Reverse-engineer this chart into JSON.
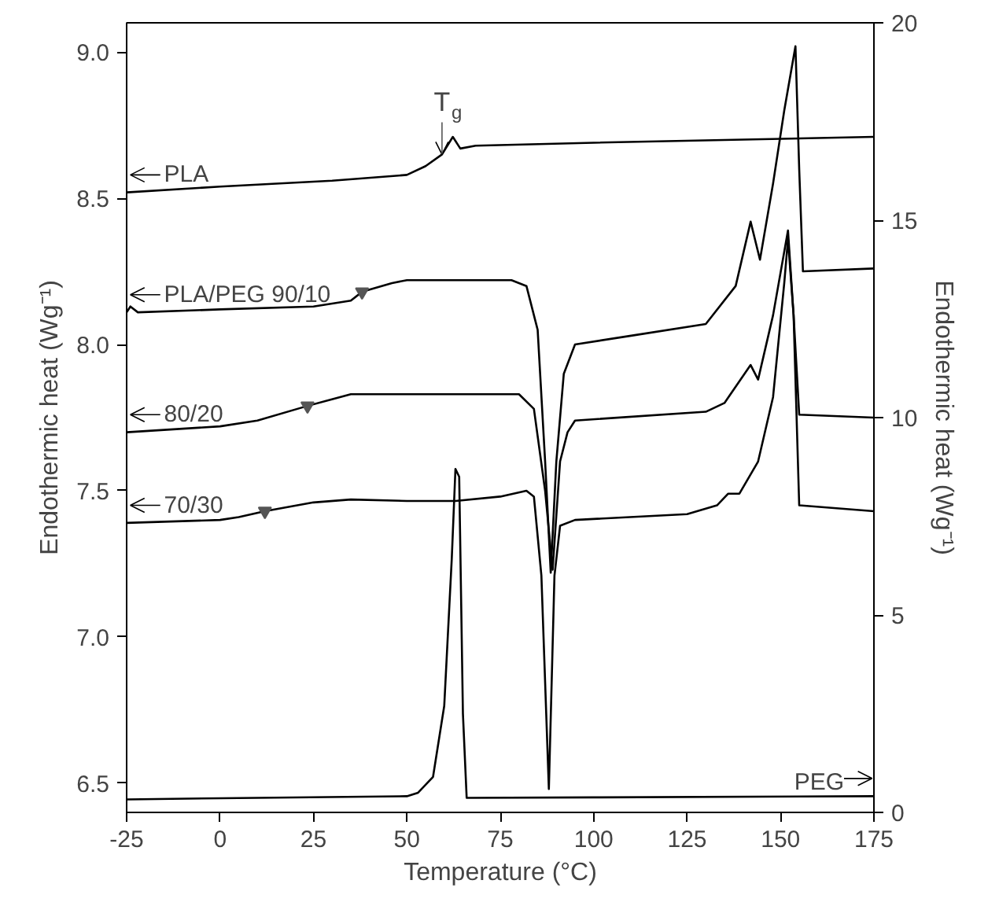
{
  "chart_data": {
    "type": "line",
    "xlabel": "Temperature (°C)",
    "ylabel": "Endothermic heat (Wg⁻¹)",
    "y2label": "Endothermic heat (Wg⁻¹)",
    "xlim": [
      -25,
      175
    ],
    "xticks": [
      -25,
      0,
      25,
      50,
      75,
      100,
      125,
      150,
      175
    ],
    "ylim": [
      6.4,
      9.1
    ],
    "yticks": [
      {
        "value": 6.5,
        "label": "6.5"
      },
      {
        "value": 7.0,
        "label": "7.0"
      },
      {
        "value": 7.5,
        "label": "7.5"
      },
      {
        "value": 8.0,
        "label": "8.0"
      },
      {
        "value": 8.5,
        "label": "8.5"
      },
      {
        "value": 9.0,
        "label": "9.0"
      }
    ],
    "y2lim": [
      0,
      20
    ],
    "y2ticks": [
      0,
      5,
      10,
      15,
      20
    ],
    "grid": false,
    "legend": "left",
    "marker": "none",
    "line_style": "solid",
    "series": [
      {
        "name": "PLA",
        "color": "#000000",
        "x": [
          -25,
          0,
          30,
          50,
          55,
          59.4,
          62.3,
          64.3,
          68.4,
          100,
          175
        ],
        "values": [
          8.52,
          8.54,
          8.56,
          8.58,
          8.61,
          8.65,
          8.71,
          8.67,
          8.68,
          8.69,
          8.71
        ]
      },
      {
        "name": "PLA/PEG 90/10",
        "color": "#000000",
        "x": [
          -25,
          -24,
          -22,
          0,
          25,
          35,
          38,
          46,
          50,
          78,
          82,
          85,
          87,
          88.5,
          90,
          92,
          95,
          110,
          130,
          138,
          142,
          144.5,
          148,
          151,
          154,
          155,
          156,
          175
        ],
        "values": [
          8.11,
          8.13,
          8.11,
          8.12,
          8.13,
          8.15,
          8.18,
          8.21,
          8.22,
          8.22,
          8.2,
          8.05,
          7.6,
          7.22,
          7.6,
          7.9,
          8.0,
          8.03,
          8.07,
          8.2,
          8.42,
          8.29,
          8.55,
          8.8,
          9.02,
          8.6,
          8.25,
          8.26
        ]
      },
      {
        "name": "80/20",
        "color": "#000000",
        "x": [
          -25,
          0,
          10,
          23.4,
          35,
          80,
          84,
          87,
          89,
          91,
          93,
          95,
          130,
          135,
          142,
          144,
          148,
          152,
          153.5,
          155,
          175
        ],
        "values": [
          7.7,
          7.72,
          7.74,
          7.79,
          7.83,
          7.83,
          7.78,
          7.5,
          7.23,
          7.6,
          7.7,
          7.74,
          7.77,
          7.8,
          7.93,
          7.88,
          8.1,
          8.39,
          8.1,
          7.76,
          7.75
        ]
      },
      {
        "name": "70/30",
        "color": "#000000",
        "x": [
          -25,
          0,
          5,
          12,
          25,
          35,
          50,
          63,
          75,
          82,
          84,
          86,
          88,
          89.5,
          91,
          95,
          125,
          133,
          136,
          139,
          144,
          148,
          151,
          152,
          153.5,
          155,
          175
        ],
        "values": [
          7.39,
          7.4,
          7.41,
          7.43,
          7.46,
          7.47,
          7.465,
          7.465,
          7.48,
          7.5,
          7.48,
          7.21,
          6.48,
          7.21,
          7.38,
          7.4,
          7.42,
          7.45,
          7.49,
          7.49,
          7.6,
          7.82,
          8.21,
          8.36,
          8.1,
          7.45,
          7.43
        ]
      },
      {
        "type": "scatter",
        "color": "#555555",
        "marker": "triangle",
        "x": [
          38,
          23.4,
          12
        ],
        "values": [
          8.18,
          7.79,
          7.43
        ]
      },
      {
        "name": "PEG",
        "color": "#000000",
        "axis": "y2",
        "x": [
          -25,
          0,
          50,
          53,
          57,
          60,
          62,
          63,
          64,
          65,
          66,
          100,
          175
        ],
        "values": [
          0.33,
          0.36,
          0.41,
          0.5,
          0.9,
          2.7,
          6.4,
          8.7,
          8.5,
          2.5,
          0.37,
          0.38,
          0.41
        ]
      }
    ],
    "annotations": [
      {
        "text": "T$_{g}$",
        "x": 59.4,
        "y": 8.65
      }
    ]
  }
}
